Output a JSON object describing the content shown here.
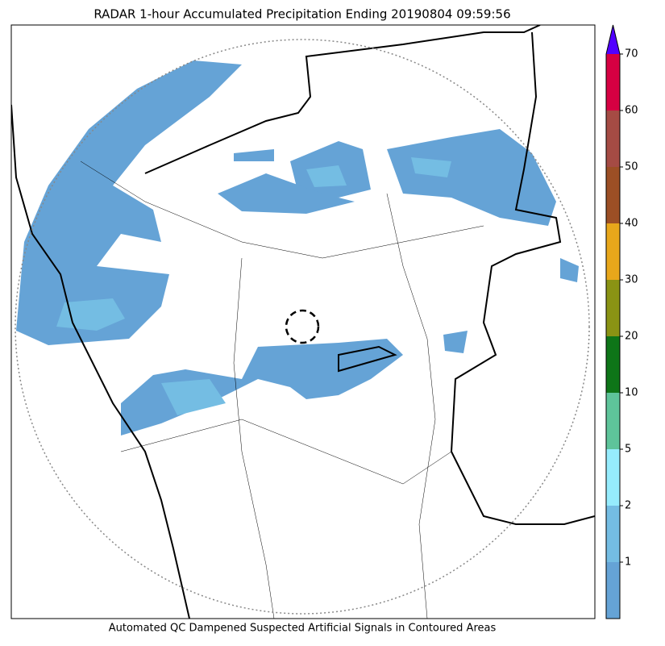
{
  "title": "RADAR 1-hour Accumulated Precipitation Ending 20190804 09:59:56",
  "caption": "Automated QC Dampened Suspected Artificial Signals in Contoured Areas",
  "colorbar": {
    "ticks": [
      1,
      2,
      5,
      10,
      20,
      30,
      40,
      50,
      60,
      70
    ],
    "colors": [
      "#65a3d6",
      "#74bde3",
      "#96ecfd",
      "#5ec49a",
      "#0e7518",
      "#8a9314",
      "#e8a71b",
      "#9c4f25",
      "#a54b44",
      "#d60042"
    ],
    "extend_color": "#5100ff"
  }
}
